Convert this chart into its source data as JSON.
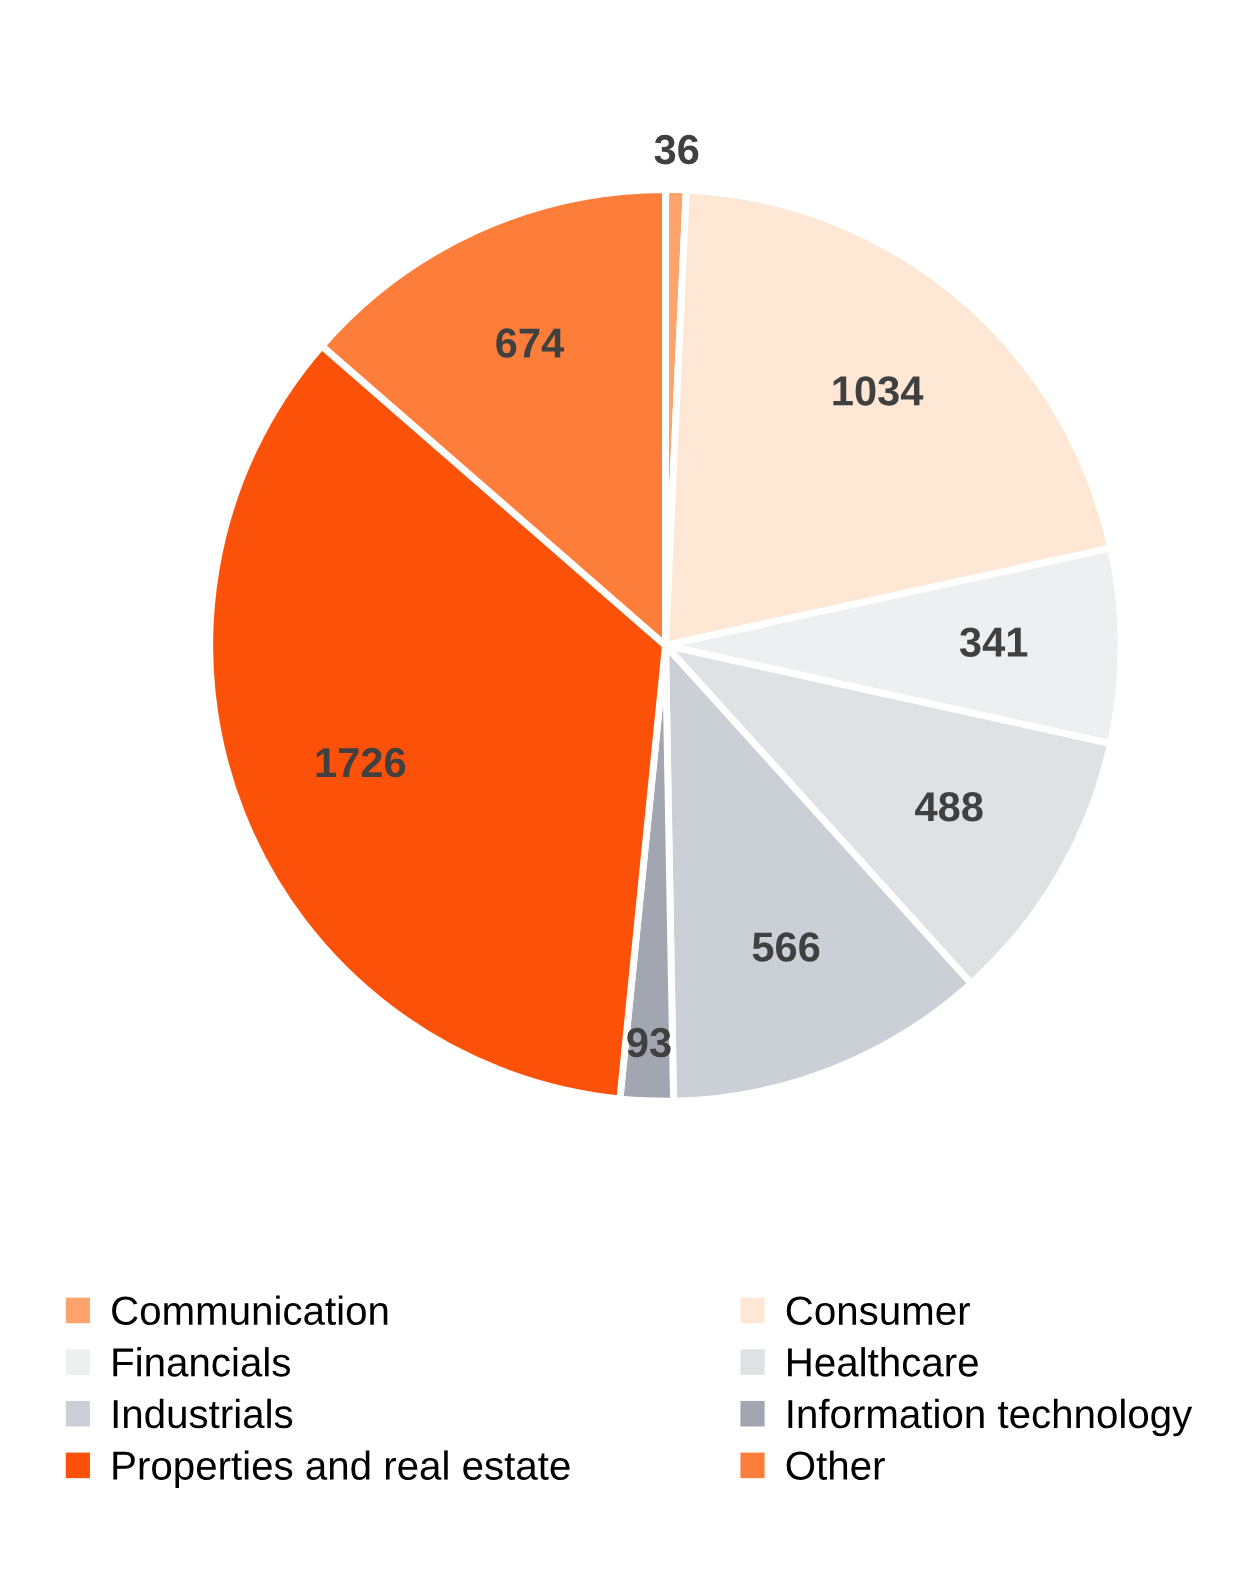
{
  "chart_data": {
    "type": "pie",
    "categories": [
      "Communication",
      "Consumer",
      "Financials",
      "Healthcare",
      "Industrials",
      "Information technology",
      "Properties and real estate",
      "Other"
    ],
    "values": [
      36,
      1034,
      341,
      488,
      566,
      93,
      1726,
      674
    ],
    "colors": [
      "#fca46c",
      "#fee7d4",
      "#eeeff1",
      "#dfe2e5",
      "#cbcfd6",
      "#a1a6b0",
      "#fc5108",
      "#fd7e3b"
    ],
    "data_labels": true,
    "legend": "bottom"
  }
}
